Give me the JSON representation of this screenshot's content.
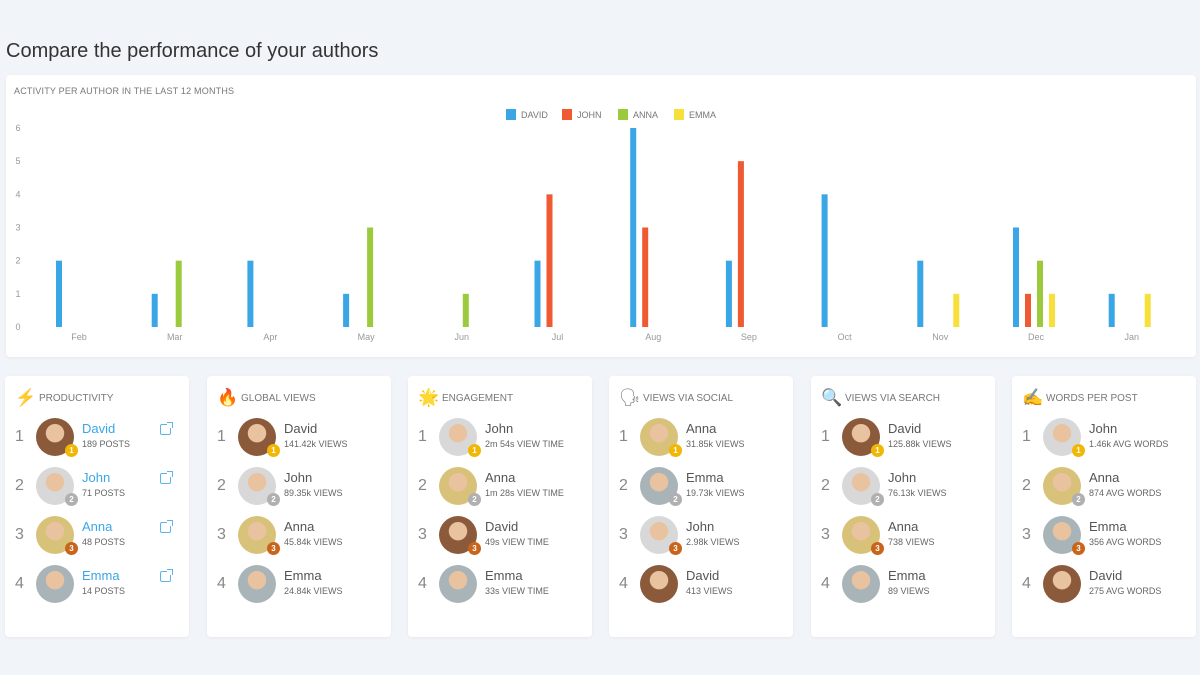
{
  "page_title": "Compare the performance of your authors",
  "chart_data": {
    "type": "bar",
    "title": "ACTIVITY PER AUTHOR IN THE LAST 12 MONTHS",
    "categories": [
      "Feb",
      "Mar",
      "Apr",
      "May",
      "Jun",
      "Jul",
      "Aug",
      "Sep",
      "Oct",
      "Nov",
      "Dec",
      "Jan"
    ],
    "ylim": [
      0,
      6
    ],
    "yticks": [
      0,
      1,
      2,
      3,
      4,
      5,
      6
    ],
    "legend_position": "top-center",
    "series": [
      {
        "name": "DAVID",
        "color": "#3aa6e6",
        "values": [
          2,
          1,
          2,
          1,
          0,
          2,
          6,
          2,
          4,
          2,
          3,
          1
        ]
      },
      {
        "name": "JOHN",
        "color": "#ef5a32",
        "values": [
          0,
          0,
          0,
          0,
          0,
          4,
          3,
          5,
          0,
          0,
          1,
          0
        ]
      },
      {
        "name": "ANNA",
        "color": "#9bcb3c",
        "values": [
          0,
          2,
          0,
          3,
          1,
          0,
          0,
          0,
          0,
          0,
          2,
          0
        ]
      },
      {
        "name": "EMMA",
        "color": "#f7e03a",
        "values": [
          0,
          0,
          0,
          0,
          0,
          0,
          0,
          0,
          0,
          1,
          1,
          1
        ]
      }
    ]
  },
  "authors": {
    "David": "#8a5a3a",
    "John": "#d8d8d8",
    "Anna": "#d8c27a",
    "Emma": "#a8b4b8"
  },
  "medals": [
    "#f2b705",
    "#b0b0b0",
    "#c8651b"
  ],
  "cards": [
    {
      "title": "PRODUCTIVITY",
      "icon": "⚡",
      "link": true,
      "rows": [
        [
          "David",
          "189 POSTS"
        ],
        [
          "John",
          "71 POSTS"
        ],
        [
          "Anna",
          "48 POSTS"
        ],
        [
          "Emma",
          "14 POSTS"
        ]
      ]
    },
    {
      "title": "GLOBAL VIEWS",
      "icon": "🔥",
      "rows": [
        [
          "David",
          "141.42k VIEWS"
        ],
        [
          "John",
          "89.35k VIEWS"
        ],
        [
          "Anna",
          "45.84k VIEWS"
        ],
        [
          "Emma",
          "24.84k VIEWS"
        ]
      ]
    },
    {
      "title": "ENGAGEMENT",
      "icon": "🌟",
      "rows": [
        [
          "John",
          "2m 54s VIEW TIME"
        ],
        [
          "Anna",
          "1m 28s VIEW TIME"
        ],
        [
          "David",
          "49s VIEW TIME"
        ],
        [
          "Emma",
          "33s VIEW TIME"
        ]
      ]
    },
    {
      "title": "VIEWS VIA SOCIAL",
      "icon": "🗣",
      "rows": [
        [
          "Anna",
          "31.85k VIEWS"
        ],
        [
          "Emma",
          "19.73k VIEWS"
        ],
        [
          "John",
          "2.98k VIEWS"
        ],
        [
          "David",
          "413 VIEWS"
        ]
      ]
    },
    {
      "title": "VIEWS VIA SEARCH",
      "icon": "🔍",
      "rows": [
        [
          "David",
          "125.88k VIEWS"
        ],
        [
          "John",
          "76.13k VIEWS"
        ],
        [
          "Anna",
          "738 VIEWS"
        ],
        [
          "Emma",
          "89 VIEWS"
        ]
      ]
    },
    {
      "title": "WORDS PER POST",
      "icon": "✍",
      "rows": [
        [
          "John",
          "1.46k AVG WORDS"
        ],
        [
          "Anna",
          "874 AVG WORDS"
        ],
        [
          "Emma",
          "356 AVG WORDS"
        ],
        [
          "David",
          "275 AVG WORDS"
        ]
      ]
    }
  ]
}
